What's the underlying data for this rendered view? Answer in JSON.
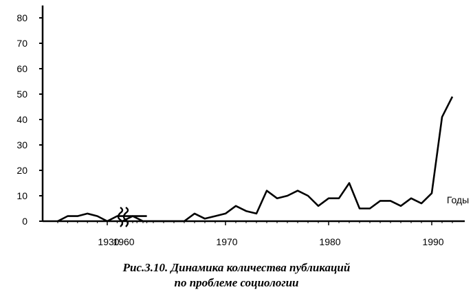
{
  "chart_data": {
    "type": "line",
    "title": "Рис.3.10. Динамика количества публикаций по проблеме социологии",
    "title_line1": "Рис.3.10. Динамика количества публикаций",
    "title_line2": "по проблеме социологии",
    "xlabel": "Годы",
    "ylabel": "",
    "ylim": [
      0,
      80
    ],
    "y_ticks": [
      "0",
      "10",
      "20",
      "30",
      "40",
      "50",
      "60",
      "70",
      "80"
    ],
    "x_tick_labels": [
      "1930",
      "1960",
      "1970",
      "1980",
      "1990"
    ],
    "axis_break": "between 1930s and 1960",
    "grid": false,
    "legend": "none",
    "line_color": "#000000",
    "segments": [
      {
        "name": "",
        "x": [
          1925,
          1926,
          1927,
          1928,
          1929,
          1930,
          1931,
          1932,
          1933,
          1934
        ],
        "values": [
          0,
          2,
          2,
          3,
          2,
          0,
          2,
          2,
          2,
          2
        ]
      },
      {
        "name": "",
        "x": [
          1960,
          1961,
          1962,
          1963,
          1964,
          1965,
          1966,
          1967,
          1968,
          1969,
          1970,
          1971,
          1972,
          1973,
          1974,
          1975,
          1976,
          1977,
          1978,
          1979,
          1980,
          1981,
          1982,
          1983,
          1984,
          1985,
          1986,
          1987,
          1988,
          1989,
          1990,
          1991,
          1992
        ],
        "values": [
          0,
          2,
          0,
          0,
          0,
          0,
          0,
          3,
          1,
          2,
          3,
          6,
          4,
          3,
          12,
          9,
          10,
          12,
          10,
          6,
          9,
          9,
          15,
          5,
          5,
          8,
          8,
          6,
          9,
          7,
          11,
          41,
          49
        ]
      }
    ]
  }
}
